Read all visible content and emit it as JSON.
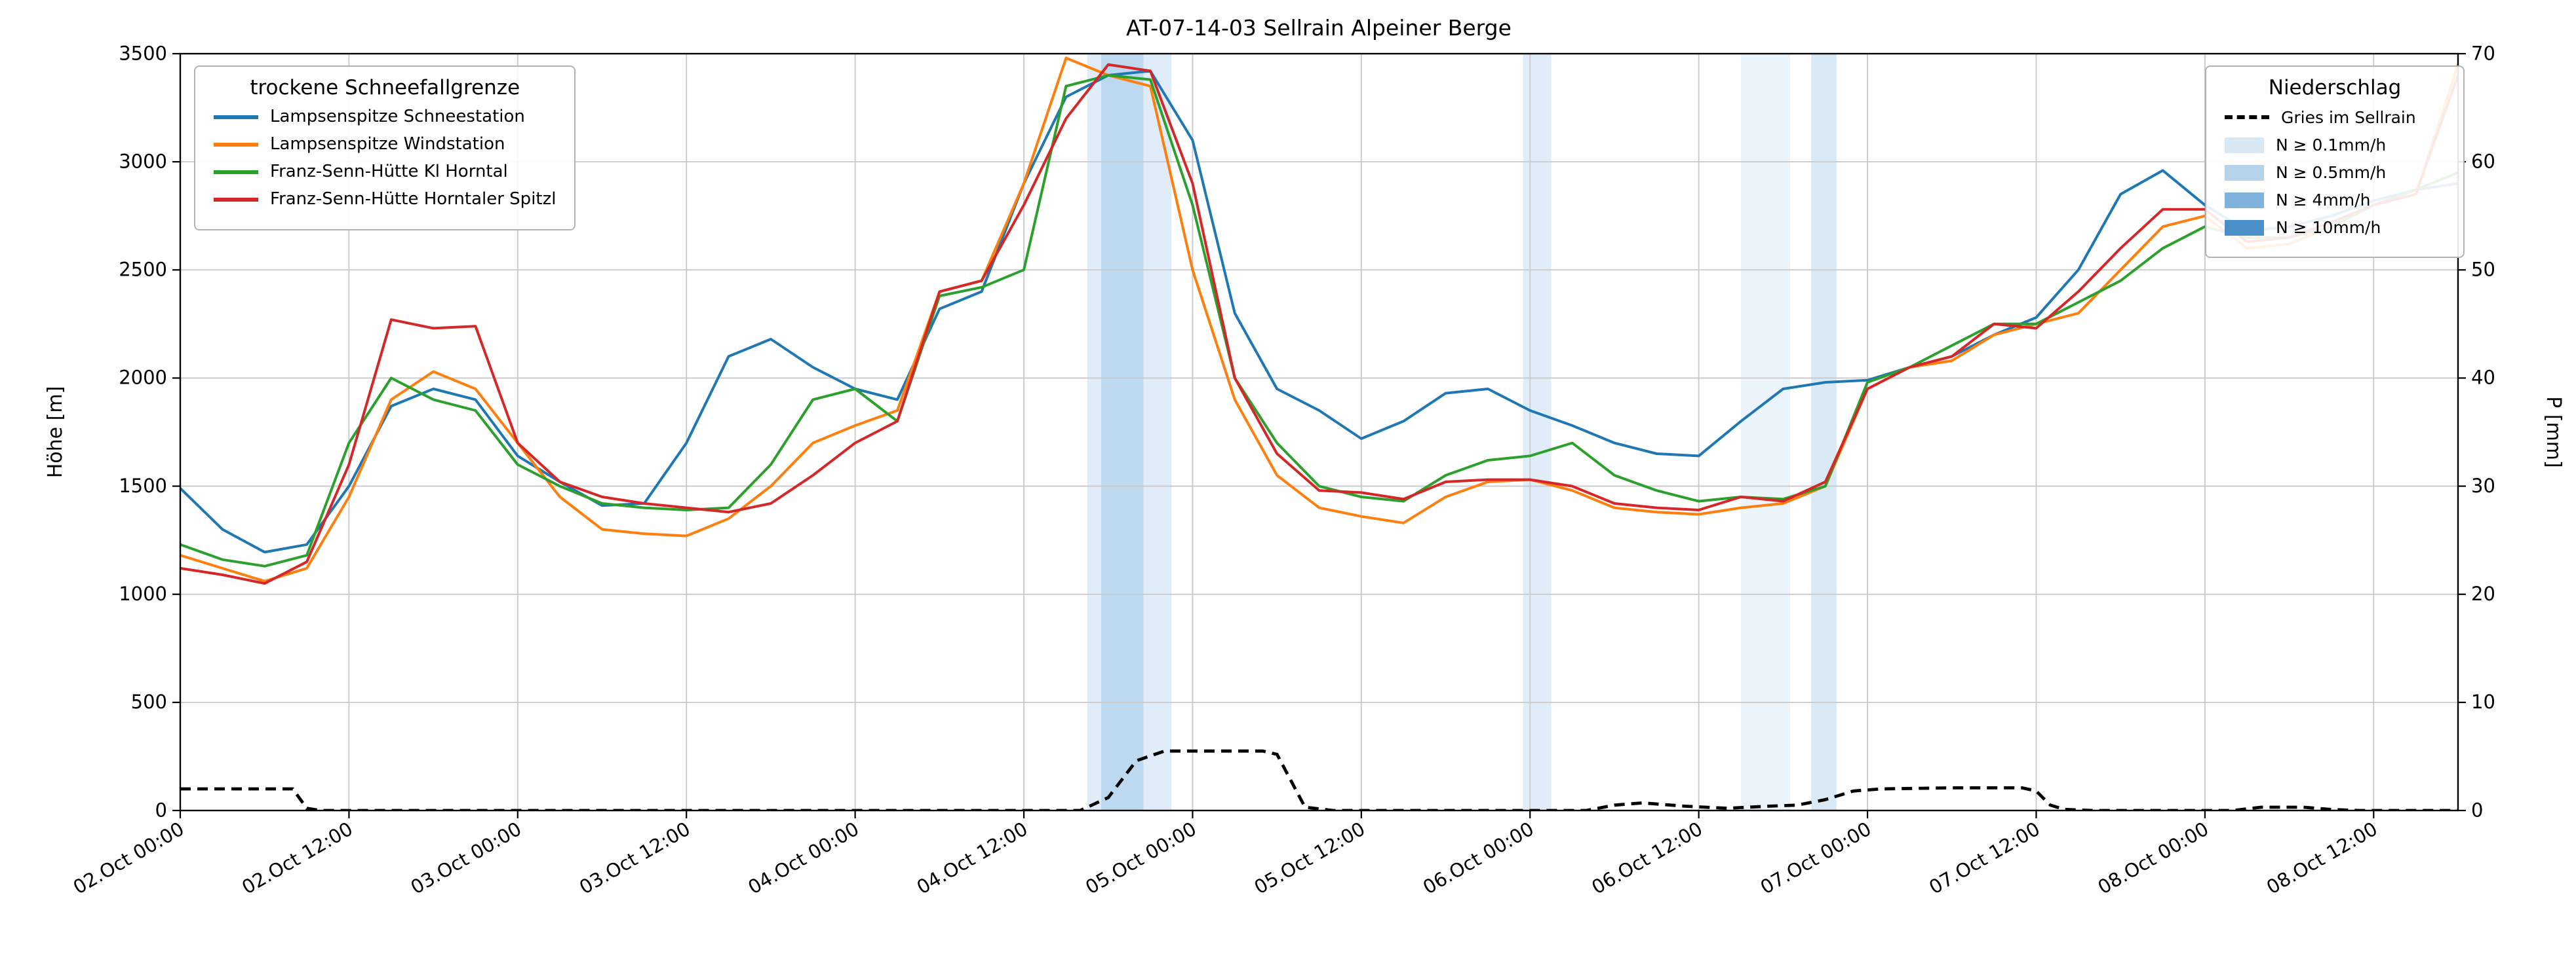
{
  "title": "AT-07-14-03 Sellrain Alpeiner Berge",
  "axes": {
    "left_label": "Höhe [m]",
    "right_label": "P [mm]",
    "left_ticks": [
      0,
      500,
      1000,
      1500,
      2000,
      2500,
      3000,
      3500
    ],
    "right_ticks": [
      0,
      10,
      20,
      30,
      40,
      50,
      60,
      70
    ],
    "x_tick_hours": [
      0,
      12,
      24,
      36,
      48,
      60,
      72,
      84,
      96,
      108,
      120,
      132,
      144,
      156
    ],
    "x_tick_labels": [
      "02.Oct 00:00",
      "02.Oct 12:00",
      "03.Oct 00:00",
      "03.Oct 12:00",
      "04.Oct 00:00",
      "04.Oct 12:00",
      "05.Oct 00:00",
      "05.Oct 12:00",
      "06.Oct 00:00",
      "06.Oct 12:00",
      "07.Oct 00:00",
      "07.Oct 12:00",
      "08.Oct 00:00",
      "08.Oct 12:00"
    ]
  },
  "legend_left": {
    "title": "trockene Schneefallgrenze",
    "entries": [
      {
        "label": "Lampsenspitze Schneestation",
        "color": "#1f77b4"
      },
      {
        "label": "Lampsenspitze Windstation",
        "color": "#ff7f0e"
      },
      {
        "label": "Franz-Senn-Hütte Kl Horntal",
        "color": "#2ca02c"
      },
      {
        "label": "Franz-Senn-Hütte Horntaler Spitzl",
        "color": "#d62728"
      }
    ]
  },
  "legend_right": {
    "title": "Niederschlag",
    "line_entry": {
      "label": "Gries im Sellrain",
      "color": "#000000",
      "style": "dashed"
    },
    "band_entries": [
      {
        "label": "N ≥ 0.1mm/h",
        "color": "#d9e8f5"
      },
      {
        "label": "N ≥ 0.5mm/h",
        "color": "#b5d4ec"
      },
      {
        "label": "N ≥ 4mm/h",
        "color": "#7fb2dd"
      },
      {
        "label": "N ≥ 10mm/h",
        "color": "#4a8fc7"
      }
    ]
  },
  "chart_data": {
    "type": "line",
    "title": "AT-07-14-03 Sellrain Alpeiner Berge",
    "x_unit": "hours since 02.Oct 00:00",
    "x_range": [
      0,
      162
    ],
    "x_step_hours": 3,
    "ylabel_left": "Höhe [m]",
    "ylim_left": [
      0,
      3500
    ],
    "ylabel_right": "P [mm]",
    "ylim_right": [
      0,
      70
    ],
    "grid": true,
    "series": [
      {
        "id": "lampsenspitze-schneestation",
        "name": "Lampsenspitze Schneestation",
        "color": "#1f77b4",
        "axis": "left",
        "values": [
          1490,
          1300,
          1195,
          1230,
          1500,
          1870,
          1950,
          1900,
          1640,
          1520,
          1410,
          1420,
          1700,
          2100,
          2180,
          2050,
          1950,
          1900,
          2320,
          2400,
          2900,
          3300,
          3400,
          3420,
          3100,
          2300,
          1950,
          1850,
          1720,
          1800,
          1930,
          1950,
          1850,
          1780,
          1700,
          1650,
          1640,
          1800,
          1950,
          1980,
          1990,
          2050,
          2100,
          2200,
          2280,
          2500,
          2850,
          2960,
          2800,
          2680,
          2700,
          2750,
          2820,
          2870,
          2900
        ]
      },
      {
        "id": "lampsenspitze-windstation",
        "name": "Lampsenspitze Windstation",
        "color": "#ff7f0e",
        "axis": "left",
        "values": [
          1180,
          1120,
          1060,
          1120,
          1450,
          1900,
          2030,
          1950,
          1700,
          1450,
          1300,
          1280,
          1270,
          1350,
          1500,
          1700,
          1780,
          1850,
          2400,
          2450,
          2900,
          3480,
          3400,
          3350,
          2500,
          1900,
          1550,
          1400,
          1360,
          1330,
          1450,
          1520,
          1530,
          1480,
          1400,
          1380,
          1370,
          1400,
          1420,
          1500,
          1950,
          2050,
          2080,
          2200,
          2250,
          2300,
          2500,
          2700,
          2750,
          2600,
          2620,
          2700,
          2800,
          2850,
          3450
        ]
      },
      {
        "id": "franz-senn-huette-kl-horntal",
        "name": "Franz-Senn-Hütte Kl Horntal",
        "color": "#2ca02c",
        "axis": "left",
        "values": [
          1230,
          1160,
          1130,
          1180,
          1700,
          2000,
          1900,
          1850,
          1600,
          1500,
          1420,
          1400,
          1390,
          1400,
          1600,
          1900,
          1950,
          1800,
          2380,
          2420,
          2500,
          3350,
          3400,
          3380,
          2800,
          2000,
          1700,
          1500,
          1450,
          1430,
          1550,
          1620,
          1640,
          1700,
          1550,
          1480,
          1430,
          1450,
          1440,
          1500,
          1980,
          2050,
          2150,
          2250,
          2250,
          2350,
          2450,
          2600,
          2700,
          2650,
          2650,
          2700,
          2800,
          2870,
          2950
        ]
      },
      {
        "id": "franz-senn-huette-horntaler-spitzl",
        "name": "Franz-Senn-Hütte Horntaler Spitzl",
        "color": "#d62728",
        "axis": "left",
        "values": [
          1120,
          1090,
          1050,
          1150,
          1600,
          2270,
          2230,
          2240,
          1700,
          1520,
          1450,
          1420,
          1400,
          1380,
          1420,
          1550,
          1700,
          1800,
          2400,
          2450,
          2800,
          3200,
          3450,
          3420,
          2900,
          2000,
          1650,
          1480,
          1470,
          1440,
          1520,
          1530,
          1530,
          1500,
          1420,
          1400,
          1390,
          1450,
          1430,
          1520,
          1950,
          2050,
          2100,
          2250,
          2230,
          2400,
          2600,
          2780,
          2780,
          2630,
          2650,
          2720,
          2800,
          2850,
          3400
        ]
      }
    ],
    "precipitation_line": {
      "name": "Gries im Sellrain",
      "axis": "right",
      "style": "dashed",
      "color": "#000000",
      "points": [
        [
          0,
          2.0
        ],
        [
          8,
          2.0
        ],
        [
          9,
          0.2
        ],
        [
          10,
          0
        ],
        [
          64,
          0
        ],
        [
          66,
          1.2
        ],
        [
          68,
          4.6
        ],
        [
          70,
          5.5
        ],
        [
          77,
          5.5
        ],
        [
          78,
          5.2
        ],
        [
          80,
          0.3
        ],
        [
          82,
          0
        ],
        [
          100,
          0
        ],
        [
          102,
          0.5
        ],
        [
          104,
          0.7
        ],
        [
          107,
          0.4
        ],
        [
          110,
          0.2
        ],
        [
          113,
          0.4
        ],
        [
          115,
          0.5
        ],
        [
          117,
          1.0
        ],
        [
          119,
          1.8
        ],
        [
          121,
          2.0
        ],
        [
          126,
          2.1
        ],
        [
          131,
          2.1
        ],
        [
          132,
          1.8
        ],
        [
          133,
          0.5
        ],
        [
          134,
          0.1
        ],
        [
          136,
          0
        ],
        [
          146,
          0
        ],
        [
          148,
          0.3
        ],
        [
          151,
          0.3
        ],
        [
          153,
          0.1
        ],
        [
          155,
          0
        ],
        [
          162,
          0
        ]
      ]
    },
    "precipitation_bands": [
      {
        "start_h": 64.5,
        "end_h": 70.5,
        "level": "N ≥ 0.1mm/h",
        "color": "#cfe3f5",
        "opacity": 0.65
      },
      {
        "start_h": 65.5,
        "end_h": 68.5,
        "level": "N ≥ 0.5mm/h",
        "color": "#b4d3ec",
        "opacity": 0.8
      },
      {
        "start_h": 95.5,
        "end_h": 97.5,
        "level": "N ≥ 0.1mm/h",
        "color": "#cfe3f5",
        "opacity": 0.65
      },
      {
        "start_h": 111,
        "end_h": 114.5,
        "level": "N ≥ 0.1mm/h",
        "color": "#e3eef9",
        "opacity": 0.7
      },
      {
        "start_h": 116,
        "end_h": 117.8,
        "level": "N ≥ 0.5mm/h",
        "color": "#d4e5f4",
        "opacity": 0.85
      }
    ]
  }
}
